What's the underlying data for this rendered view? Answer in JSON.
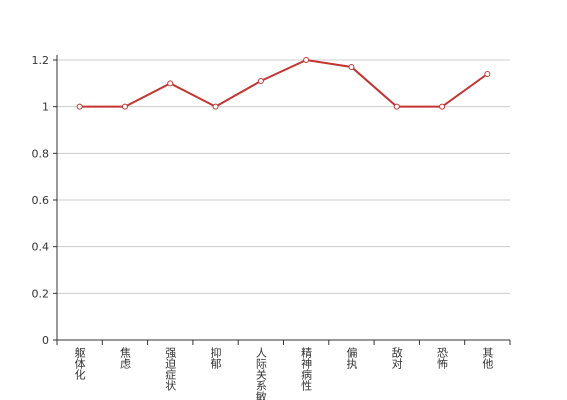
{
  "chart_data": {
    "type": "line",
    "categories": [
      "躯体化",
      "焦虑",
      "强迫症状",
      "抑郁",
      "人际关系敏感",
      "精神病性",
      "偏执",
      "敌对",
      "恐怖",
      "其他"
    ],
    "series": [
      {
        "color": "#c23531",
        "values": [
          1,
          1,
          1.1,
          1,
          1.11,
          1.2,
          1.17,
          1,
          1,
          1.14
        ]
      }
    ],
    "ylim": [
      0,
      1.2
    ],
    "yticks": [
      0,
      0.2,
      0.4,
      0.6,
      0.8,
      1,
      1.2
    ],
    "grid": true
  }
}
